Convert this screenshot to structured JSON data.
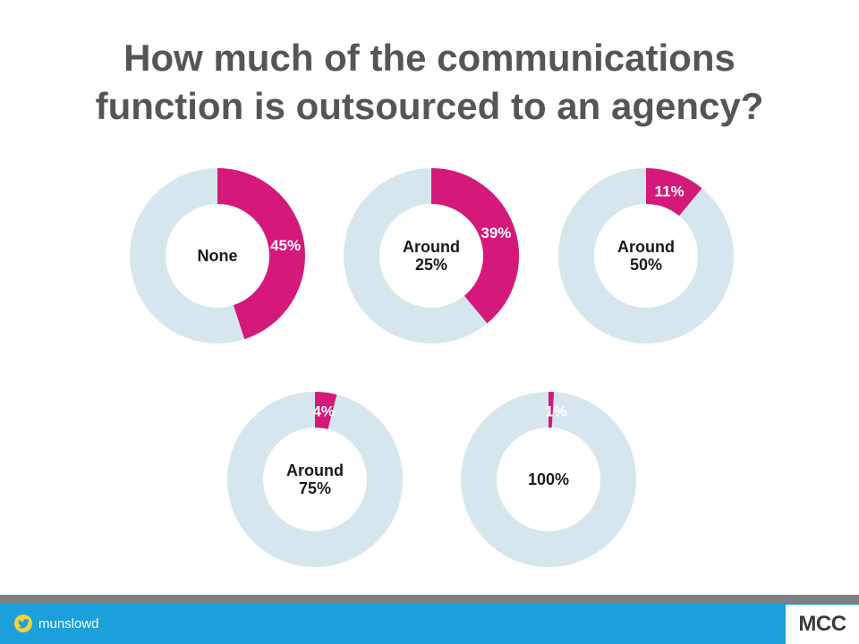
{
  "title_lines": [
    "How much of the communications",
    "function is outsourced to an agency?"
  ],
  "chart_data": {
    "type": "pie",
    "variant": "donut-small-multiples",
    "title": "How much of the communications function is outsourced to an agency?",
    "value_unit": "%",
    "colors": {
      "highlight": "#d4197a",
      "remainder": "#d6e6ee"
    },
    "charts": [
      {
        "category": "None",
        "value": 45,
        "value_label": "45%",
        "label_lines": [
          "None"
        ]
      },
      {
        "category": "Around 25%",
        "value": 39,
        "value_label": "39%",
        "label_lines": [
          "Around",
          "25%"
        ]
      },
      {
        "category": "Around 50%",
        "value": 11,
        "value_label": "11%",
        "label_lines": [
          "Around",
          "50%"
        ]
      },
      {
        "category": "Around 75%",
        "value": 4,
        "value_label": "4%",
        "label_lines": [
          "Around",
          "75%"
        ]
      },
      {
        "category": "100%",
        "value": 1,
        "value_label": "1%",
        "label_lines": [
          "100%"
        ]
      }
    ]
  },
  "footer": {
    "twitter_icon": "twitter-bird-icon",
    "twitter_handle": "munslowd",
    "logo_text": "MCC",
    "bar_color": "#1ba0dc",
    "rule_color": "#808080"
  }
}
